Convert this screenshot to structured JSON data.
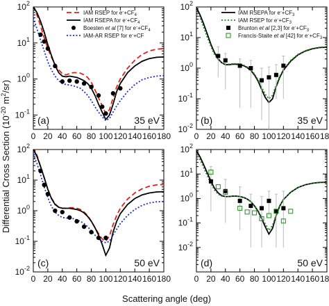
{
  "figure": {
    "ylabel_main": "Differential Cross Section (10",
    "ylabel_exp": "-20",
    "ylabel_tail": " m",
    "ylabel_exp2": "2",
    "ylabel_end": "/sr)",
    "xlabel": "Scattering angle (deg)"
  },
  "chart_data": [
    {
      "type": "line",
      "panel_label": "(a)",
      "energy_label": "35 eV",
      "xlim": [
        0,
        180
      ],
      "ylim": [
        0.04,
        100
      ],
      "yscale": "log",
      "x_ticks": [
        "0",
        "20",
        "40",
        "60",
        "80",
        "100",
        "120",
        "140",
        "160",
        "180"
      ],
      "y_ticks": [
        {
          "value": 0.1,
          "base": "10",
          "exp": "-1"
        },
        {
          "value": 1,
          "base": "10",
          "exp": "0"
        },
        {
          "value": 10,
          "base": "10",
          "exp": "1"
        },
        {
          "value": 100,
          "base": "10",
          "exp": "2"
        }
      ],
      "legend": [
        {
          "label": "IAM RSEP for e",
          "sup": "-",
          "tail": "+CF",
          "sub": "4"
        },
        {
          "label": "IAM RSEPA for e",
          "sup": "-",
          "tail": "+CF",
          "sub": "4"
        },
        {
          "label": "Boesten ",
          "italic": "et al",
          "tail2": " [7] for e",
          "sup": "-",
          "tail": "+CF",
          "sub": "4"
        },
        {
          "label": "IAM-AR RSEP for e",
          "sup": "-",
          "tail": "+CF",
          "sub": ""
        }
      ],
      "series": [
        {
          "style": "dashed",
          "color": "#e0201b",
          "x": [
            0,
            5,
            10,
            15,
            20,
            25,
            30,
            35,
            40,
            45,
            50,
            55,
            60,
            65,
            70,
            75,
            80,
            85,
            90,
            95,
            100,
            105,
            110,
            115,
            120,
            130,
            140,
            150,
            160,
            170,
            180
          ],
          "values": [
            105,
            60,
            30,
            14,
            7,
            4,
            2.6,
            1.8,
            1.4,
            1.3,
            1.4,
            1.5,
            1.5,
            1.45,
            1.3,
            1.1,
            0.8,
            0.5,
            0.3,
            0.18,
            0.11,
            0.14,
            0.3,
            0.6,
            1.0,
            2.0,
            3.3,
            4.8,
            6.0,
            6.7,
            7.0
          ]
        },
        {
          "style": "solid",
          "color": "#000000",
          "x": [
            0,
            5,
            10,
            15,
            20,
            25,
            30,
            35,
            40,
            45,
            50,
            55,
            60,
            65,
            70,
            75,
            80,
            85,
            90,
            95,
            100,
            105,
            110,
            115,
            120,
            130,
            140,
            150,
            160,
            170,
            180
          ],
          "values": [
            100,
            70,
            40,
            20,
            9,
            4.5,
            2.4,
            1.5,
            1.2,
            1.15,
            1.2,
            1.15,
            1.1,
            1.0,
            0.9,
            0.75,
            0.55,
            0.35,
            0.2,
            0.12,
            0.075,
            0.1,
            0.2,
            0.45,
            0.75,
            1.5,
            2.3,
            3.1,
            3.7,
            4.0,
            4.1
          ]
        },
        {
          "style": "dotted",
          "color": "#1c2bd6",
          "x": [
            0,
            5,
            10,
            15,
            20,
            25,
            30,
            35,
            40,
            45,
            50,
            55,
            60,
            65,
            70,
            75,
            80,
            85,
            90,
            95,
            100,
            105,
            110,
            115,
            120,
            130,
            140,
            150,
            160,
            170,
            180
          ],
          "values": [
            50,
            25,
            12,
            6,
            3,
            1.8,
            1.2,
            0.9,
            0.75,
            0.7,
            0.68,
            0.65,
            0.6,
            0.55,
            0.45,
            0.35,
            0.25,
            0.17,
            0.12,
            0.09,
            0.07,
            0.08,
            0.12,
            0.18,
            0.25,
            0.45,
            0.7,
            0.95,
            1.1,
            1.2,
            1.25
          ]
        }
      ],
      "points": [
        {
          "marker": "circle",
          "color": "#000000",
          "x": [
            10,
            15,
            20,
            30,
            40,
            50,
            60,
            70,
            80,
            90,
            95,
            100,
            110,
            120
          ],
          "values": [
            17,
            11,
            7,
            2.3,
            0.85,
            0.9,
            0.85,
            0.75,
            0.6,
            0.35,
            0.17,
            0.11,
            0.4,
            0.55
          ]
        }
      ]
    },
    {
      "type": "line",
      "panel_label": "(b)",
      "energy_label": "35 eV",
      "xlim": [
        0,
        180
      ],
      "ylim": [
        0.01,
        100
      ],
      "yscale": "log",
      "x_ticks": [
        "0",
        "20",
        "40",
        "60",
        "80",
        "100",
        "120",
        "140",
        "160",
        "180"
      ],
      "y_ticks": [
        {
          "value": 0.01,
          "base": "10",
          "exp": "-2"
        },
        {
          "value": 0.1,
          "base": "10",
          "exp": "-1"
        },
        {
          "value": 1,
          "base": "10",
          "exp": "0"
        },
        {
          "value": 10,
          "base": "10",
          "exp": "1"
        },
        {
          "value": 100,
          "base": "10",
          "exp": "2"
        }
      ],
      "legend": [
        {
          "label": "IAM RSEPA for e",
          "sup": "-",
          "tail": "+CF",
          "sub": "3"
        },
        {
          "label": "IAM RSEP for e",
          "sup": "-",
          "tail": "+CF",
          "sub": "3"
        },
        {
          "label": "Brunton ",
          "italic": "et al",
          "tail2": " [2,3] for e",
          "sup": "-",
          "tail": "+CF",
          "sub": "3"
        },
        {
          "label": "Francis-Staite ",
          "italic": "et al",
          "tail2": " [42] for e",
          "sup": "-",
          "tail": "+CF",
          "sub": "3"
        }
      ],
      "series": [
        {
          "style": "solid",
          "color": "#000000",
          "x": [
            0,
            5,
            10,
            15,
            20,
            25,
            30,
            35,
            40,
            45,
            50,
            55,
            60,
            65,
            70,
            75,
            80,
            85,
            90,
            95,
            100,
            105,
            110,
            115,
            120,
            130,
            140,
            150,
            160,
            170,
            180
          ],
          "values": [
            95,
            55,
            28,
            13,
            6,
            3.2,
            2.0,
            1.5,
            1.3,
            1.3,
            1.35,
            1.35,
            1.3,
            1.2,
            1.05,
            0.85,
            0.6,
            0.38,
            0.2,
            0.11,
            0.075,
            0.1,
            0.25,
            0.5,
            0.85,
            1.7,
            2.7,
            3.6,
            4.3,
            4.7,
            4.8
          ]
        },
        {
          "style": "dotted",
          "color": "#1a8c1a",
          "x": [
            0,
            5,
            10,
            15,
            20,
            25,
            30,
            35,
            40,
            45,
            50,
            55,
            60,
            65,
            70,
            75,
            80,
            85,
            90,
            95,
            100,
            105,
            110,
            115,
            120,
            130,
            140,
            150,
            160,
            170,
            180
          ],
          "values": [
            80,
            45,
            22,
            10,
            5,
            2.8,
            1.9,
            1.5,
            1.35,
            1.35,
            1.4,
            1.4,
            1.35,
            1.25,
            1.1,
            0.9,
            0.65,
            0.42,
            0.24,
            0.14,
            0.1,
            0.13,
            0.28,
            0.55,
            0.9,
            1.8,
            2.8,
            3.7,
            4.4,
            4.8,
            5.0
          ]
        }
      ],
      "points": [
        {
          "marker": "square",
          "color": "#000000",
          "x": [
            30,
            40,
            60,
            75,
            90,
            100,
            110,
            120
          ],
          "values": [
            2.5,
            1.8,
            1.2,
            1.0,
            0.4,
            0.5,
            0.6,
            1.2
          ],
          "err_lo": [
            0.5,
            0.2,
            0.05,
            0.05,
            0.02,
            0.01,
            0.1,
            0.1
          ],
          "err_hi": [
            5,
            3,
            2,
            1.8,
            1.0,
            1.1,
            1.3,
            2.5
          ]
        }
      ]
    },
    {
      "type": "line",
      "panel_label": "(c)",
      "energy_label": "50 eV",
      "xlim": [
        0,
        180
      ],
      "ylim": [
        0.01,
        100
      ],
      "yscale": "log",
      "x_ticks": [
        "0",
        "20",
        "40",
        "60",
        "80",
        "100",
        "120",
        "140",
        "160",
        "180"
      ],
      "y_ticks": [
        {
          "value": 0.01,
          "base": "10",
          "exp": "-2"
        },
        {
          "value": 0.1,
          "base": "10",
          "exp": "-1"
        },
        {
          "value": 1,
          "base": "10",
          "exp": "0"
        },
        {
          "value": 10,
          "base": "10",
          "exp": "1"
        },
        {
          "value": 100,
          "base": "10",
          "exp": "2"
        }
      ],
      "series": [
        {
          "style": "dashed",
          "color": "#e0201b",
          "x": [
            0,
            5,
            10,
            15,
            20,
            25,
            30,
            35,
            40,
            45,
            50,
            55,
            60,
            65,
            70,
            75,
            80,
            85,
            90,
            95,
            100,
            105,
            110,
            115,
            120,
            130,
            140,
            150,
            160,
            170,
            180
          ],
          "values": [
            120,
            65,
            28,
            12,
            5,
            2.6,
            1.7,
            1.3,
            1.2,
            1.2,
            1.25,
            1.25,
            1.2,
            1.1,
            0.9,
            0.7,
            0.45,
            0.28,
            0.18,
            0.12,
            0.1,
            0.15,
            0.35,
            0.7,
            1.2,
            2.4,
            3.8,
            5.2,
            6.3,
            7.0,
            7.2
          ]
        },
        {
          "style": "solid",
          "color": "#000000",
          "x": [
            0,
            5,
            10,
            15,
            20,
            25,
            30,
            35,
            40,
            45,
            50,
            55,
            60,
            65,
            70,
            75,
            80,
            85,
            90,
            95,
            100,
            105,
            110,
            115,
            120,
            130,
            140,
            150,
            160,
            170,
            180
          ],
          "values": [
            105,
            60,
            28,
            12,
            5,
            2.5,
            1.6,
            1.3,
            1.2,
            1.2,
            1.2,
            1.15,
            1.1,
            1.0,
            0.85,
            0.65,
            0.45,
            0.28,
            0.16,
            0.08,
            0.035,
            0.06,
            0.2,
            0.45,
            0.8,
            1.6,
            2.5,
            3.3,
            3.8,
            4.1,
            4.2
          ]
        },
        {
          "style": "dotted",
          "color": "#1c2bd6",
          "x": [
            0,
            5,
            10,
            15,
            20,
            25,
            30,
            35,
            40,
            45,
            50,
            55,
            60,
            65,
            70,
            75,
            80,
            85,
            90,
            95,
            100,
            105,
            110,
            115,
            120,
            130,
            140,
            150,
            160,
            170,
            180
          ],
          "values": [
            70,
            35,
            15,
            6,
            2.7,
            1.4,
            0.9,
            0.7,
            0.6,
            0.58,
            0.57,
            0.55,
            0.5,
            0.45,
            0.38,
            0.3,
            0.22,
            0.16,
            0.12,
            0.1,
            0.09,
            0.1,
            0.16,
            0.25,
            0.38,
            0.7,
            1.1,
            1.5,
            1.8,
            1.95,
            2.0
          ]
        }
      ],
      "points": [
        {
          "marker": "circle",
          "color": "#000000",
          "x": [
            10,
            15,
            20,
            30,
            40,
            50,
            60,
            70,
            80,
            90,
            100
          ],
          "values": [
            20,
            7,
            3.5,
            1.0,
            0.9,
            0.6,
            0.45,
            0.3,
            0.2,
            0.13,
            0.13
          ]
        }
      ]
    },
    {
      "type": "line",
      "panel_label": "(d)",
      "energy_label": "50 eV",
      "xlim": [
        0,
        180
      ],
      "ylim": [
        0.001,
        100
      ],
      "yscale": "log",
      "x_ticks": [
        "0",
        "20",
        "40",
        "60",
        "80",
        "100",
        "120",
        "140",
        "160",
        "180"
      ],
      "y_ticks": [
        {
          "value": 0.01,
          "base": "10",
          "exp": "-2"
        },
        {
          "value": 0.1,
          "base": "10",
          "exp": "-1"
        },
        {
          "value": 1,
          "base": "10",
          "exp": "0"
        },
        {
          "value": 10,
          "base": "10",
          "exp": "1"
        },
        {
          "value": 100,
          "base": "10",
          "exp": "2"
        }
      ],
      "series": [
        {
          "style": "solid",
          "color": "#000000",
          "x": [
            0,
            5,
            10,
            15,
            20,
            25,
            30,
            35,
            40,
            45,
            50,
            55,
            60,
            65,
            70,
            75,
            80,
            85,
            90,
            95,
            100,
            105,
            110,
            115,
            120,
            130,
            140,
            150,
            160,
            170,
            180
          ],
          "values": [
            90,
            50,
            24,
            11,
            5,
            2.6,
            1.7,
            1.3,
            1.2,
            1.2,
            1.25,
            1.25,
            1.2,
            1.1,
            0.95,
            0.75,
            0.5,
            0.3,
            0.15,
            0.07,
            0.035,
            0.06,
            0.2,
            0.5,
            0.9,
            1.8,
            2.8,
            3.6,
            4.2,
            4.5,
            4.6
          ]
        },
        {
          "style": "dotted",
          "color": "#1a8c1a",
          "x": [
            0,
            5,
            10,
            15,
            20,
            25,
            30,
            35,
            40,
            45,
            50,
            55,
            60,
            65,
            70,
            75,
            80,
            85,
            90,
            95,
            100,
            105,
            110,
            115,
            120,
            130,
            140,
            150,
            160,
            170,
            180
          ],
          "values": [
            70,
            38,
            18,
            8.5,
            4,
            2.2,
            1.5,
            1.25,
            1.2,
            1.2,
            1.25,
            1.25,
            1.2,
            1.1,
            0.95,
            0.75,
            0.52,
            0.32,
            0.17,
            0.09,
            0.05,
            0.08,
            0.22,
            0.52,
            0.9,
            1.8,
            2.8,
            3.6,
            4.2,
            4.6,
            4.7
          ]
        }
      ],
      "points": [
        {
          "marker": "square",
          "color": "#000000",
          "x": [
            20,
            40,
            60,
            75,
            90,
            100,
            110,
            120
          ],
          "values": [
            5,
            2.0,
            0.8,
            0.5,
            0.4,
            0.8,
            0.3,
            0.4
          ],
          "err_lo": [
            0.3,
            0.1,
            0.05,
            0.01,
            0.01,
            0.2,
            0.01,
            0.01
          ],
          "err_hi": [
            20,
            6,
            3,
            1.5,
            1.2,
            2.0,
            1.5,
            2.0
          ]
        },
        {
          "marker": "square-open",
          "color": "#1a8c1a",
          "x": [
            20,
            30,
            40,
            60,
            70,
            80,
            90,
            100,
            110,
            120,
            130
          ],
          "values": [
            12,
            3.0,
            1.8,
            0.4,
            0.28,
            0.26,
            0.15,
            0.2,
            0.3,
            0.12,
            0.3
          ]
        }
      ]
    }
  ]
}
